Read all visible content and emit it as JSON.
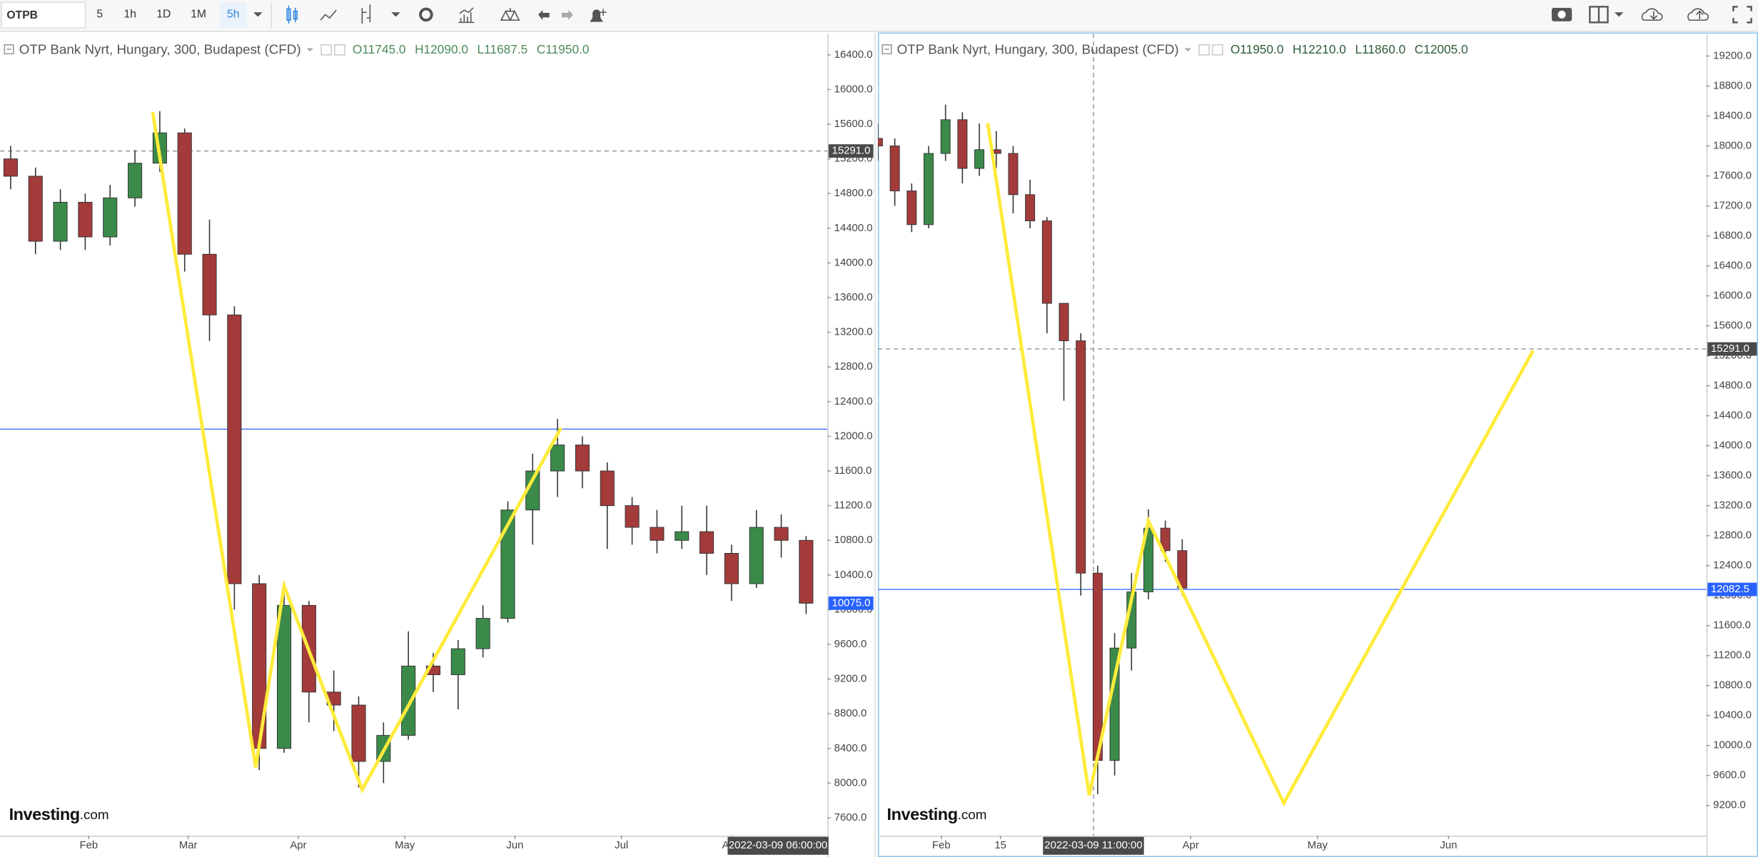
{
  "toolbar": {
    "symbol": "OTPB",
    "intervals": [
      "5",
      "1h",
      "1D",
      "1M",
      "5h"
    ],
    "active_interval": "5h"
  },
  "chart_data": [
    {
      "type": "candlestick",
      "title": "OTP Bank Nyrt, Hungary, 300, Budapest (CFD)",
      "readout": [
        "O11745.0",
        "H12090.0",
        "L11687.5",
        "C11950.0"
      ],
      "logo": [
        "Investing",
        ".com"
      ],
      "up_color": "#3b8a4a",
      "down_color": "#a33b3b",
      "xlim": [
        "2022-01-07",
        "2022-08-28"
      ],
      "ylim": [
        7393,
        16645
      ],
      "xticks": [
        {
          "value": "2022-02-01",
          "label": "Feb"
        },
        {
          "value": "2022-03-01",
          "label": "Mar"
        },
        {
          "value": "2022-04-01",
          "label": "Apr"
        },
        {
          "value": "2022-05-01",
          "label": "May"
        },
        {
          "value": "2022-06-01",
          "label": "Jun"
        },
        {
          "value": "2022-07-01",
          "label": "Jul"
        },
        {
          "value": "2022-08-01",
          "label": "Aug"
        }
      ],
      "yticks": [
        {
          "value": 7600,
          "label": "7600.0"
        },
        {
          "value": 8000,
          "label": "8000.0"
        },
        {
          "value": 8400,
          "label": "8400.0"
        },
        {
          "value": 8800,
          "label": "8800.0"
        },
        {
          "value": 9200,
          "label": "9200.0"
        },
        {
          "value": 9600,
          "label": "9600.0"
        },
        {
          "value": 10000,
          "label": "10000.0"
        },
        {
          "value": 10400,
          "label": "10400.0"
        },
        {
          "value": 10800,
          "label": "10800.0"
        },
        {
          "value": 11200,
          "label": "11200.0"
        },
        {
          "value": 11600,
          "label": "11600.0"
        },
        {
          "value": 12000,
          "label": "12000.0"
        },
        {
          "value": 12400,
          "label": "12400.0"
        },
        {
          "value": 12800,
          "label": "12800.0"
        },
        {
          "value": 13200,
          "label": "13200.0"
        },
        {
          "value": 13600,
          "label": "13600.0"
        },
        {
          "value": 14000,
          "label": "14000.0"
        },
        {
          "value": 14400,
          "label": "14400.0"
        },
        {
          "value": 14800,
          "label": "14800.0"
        },
        {
          "value": 15200,
          "label": "15200.0"
        },
        {
          "value": 15600,
          "label": "15600.0"
        },
        {
          "value": 16000,
          "label": "16000.0"
        },
        {
          "value": 16400,
          "label": "16400.0"
        }
      ],
      "candles": {
        "x": [
          "2022-01-10",
          "2022-01-17",
          "2022-01-24",
          "2022-01-31",
          "2022-02-07",
          "2022-02-14",
          "2022-02-21",
          "2022-02-28",
          "2022-03-07",
          "2022-03-14",
          "2022-03-21",
          "2022-03-28",
          "2022-04-04",
          "2022-04-11",
          "2022-04-18",
          "2022-04-25",
          "2022-05-02",
          "2022-05-09",
          "2022-05-16",
          "2022-05-23",
          "2022-05-30",
          "2022-06-06",
          "2022-06-13",
          "2022-06-20",
          "2022-06-27",
          "2022-07-04",
          "2022-07-11",
          "2022-07-18",
          "2022-07-25",
          "2022-08-01",
          "2022-08-08",
          "2022-08-15",
          "2022-08-22"
        ],
        "open": [
          15200,
          15000,
          14250,
          14700,
          14300,
          14750,
          15150,
          15500,
          14100,
          13400,
          10300,
          8400,
          10050,
          9050,
          8900,
          8250,
          8550,
          9350,
          9250,
          9550,
          9900,
          11150,
          11600,
          11900,
          11600,
          11200,
          10950,
          10800,
          10900,
          10650,
          10300,
          10950,
          10800
        ],
        "high": [
          15350,
          15100,
          14850,
          14800,
          14900,
          15300,
          15750,
          15550,
          14500,
          13500,
          10400,
          10250,
          10100,
          9300,
          9000,
          8700,
          9750,
          9500,
          9650,
          10050,
          11250,
          11800,
          12200,
          12000,
          11700,
          11300,
          11150,
          11200,
          11200,
          10750,
          11150,
          11100,
          10850
        ],
        "low": [
          14850,
          14100,
          14150,
          14150,
          14200,
          14650,
          15050,
          13900,
          13100,
          10000,
          8150,
          8350,
          8700,
          8600,
          7950,
          8000,
          8500,
          9050,
          8850,
          9450,
          9850,
          10750,
          11300,
          11400,
          10700,
          10750,
          10650,
          10700,
          10400,
          10100,
          10250,
          10600,
          9950
        ],
        "close": [
          15000,
          14250,
          14700,
          14300,
          14750,
          15150,
          15500,
          14100,
          13400,
          10300,
          8400,
          10050,
          9050,
          8900,
          8250,
          8550,
          9350,
          9250,
          9550,
          9900,
          11150,
          11600,
          11900,
          11600,
          11200,
          10950,
          10800,
          10900,
          10650,
          10300,
          10950,
          10800,
          10075
        ]
      },
      "overlay_line": {
        "color": "#ffeb3b",
        "x": [
          "2022-02-19",
          "2022-03-20",
          "2022-03-28",
          "2022-04-19",
          "2022-06-14"
        ],
        "values": [
          15741,
          8180,
          10274,
          7924,
          12098
        ]
      },
      "price_lines": [
        {
          "value": 15291,
          "label": "15291.0",
          "color": "#888888",
          "label_color": "#4a4a4a",
          "dashed": true
        },
        {
          "value": 12082.5,
          "color": "#2962ff",
          "dashed": false
        }
      ],
      "last_price": {
        "value": 10075,
        "label": "10075.0",
        "color": "#2962ff"
      },
      "crosshair_time_label": "2022-03-09 06:00:00"
    },
    {
      "type": "candlestick",
      "title": "OTP Bank Nyrt, Hungary, 300, Budapest (CFD)",
      "readout": [
        "O11950.0",
        "H12210.0",
        "L11860.0",
        "C12005.0"
      ],
      "logo": [
        "Investing",
        ".com"
      ],
      "up_color": "#3b8a4a",
      "down_color": "#a33b3b",
      "xlim": [
        "2022-01-17",
        "2022-08-01"
      ],
      "ylim": [
        8796,
        19499
      ],
      "xticks": [
        {
          "value": "2022-02-01",
          "label": "Feb"
        },
        {
          "value": "2022-02-15",
          "label": "15"
        },
        {
          "value": "2022-04-01",
          "label": "Apr"
        },
        {
          "value": "2022-05-01",
          "label": "May"
        },
        {
          "value": "2022-06-01",
          "label": "Jun"
        }
      ],
      "yticks": [
        {
          "value": 9200,
          "label": "9200.0"
        },
        {
          "value": 9600,
          "label": "9600.0"
        },
        {
          "value": 10000,
          "label": "10000.0"
        },
        {
          "value": 10400,
          "label": "10400.0"
        },
        {
          "value": 10800,
          "label": "10800.0"
        },
        {
          "value": 11200,
          "label": "11200.0"
        },
        {
          "value": 11600,
          "label": "11600.0"
        },
        {
          "value": 12000,
          "label": "12000.0"
        },
        {
          "value": 12400,
          "label": "12400.0"
        },
        {
          "value": 12800,
          "label": "12800.0"
        },
        {
          "value": 13200,
          "label": "13200.0"
        },
        {
          "value": 13600,
          "label": "13600.0"
        },
        {
          "value": 14000,
          "label": "14000.0"
        },
        {
          "value": 14400,
          "label": "14400.0"
        },
        {
          "value": 14800,
          "label": "14800.0"
        },
        {
          "value": 15200,
          "label": "15200.0"
        },
        {
          "value": 15600,
          "label": "15600.0"
        },
        {
          "value": 16000,
          "label": "16000.0"
        },
        {
          "value": 16400,
          "label": "16400.0"
        },
        {
          "value": 16800,
          "label": "16800.0"
        },
        {
          "value": 17200,
          "label": "17200.0"
        },
        {
          "value": 17600,
          "label": "17600.0"
        },
        {
          "value": 18000,
          "label": "18000.0"
        },
        {
          "value": 18400,
          "label": "18400.0"
        },
        {
          "value": 18800,
          "label": "18800.0"
        },
        {
          "value": 19200,
          "label": "19200.0"
        }
      ],
      "candles": {
        "x": [
          "2022-01-17",
          "2022-01-21",
          "2022-01-25",
          "2022-01-29",
          "2022-02-02",
          "2022-02-06",
          "2022-02-10",
          "2022-02-14",
          "2022-02-18",
          "2022-02-22",
          "2022-02-26",
          "2022-03-02",
          "2022-03-06",
          "2022-03-10",
          "2022-03-14",
          "2022-03-18",
          "2022-03-22",
          "2022-03-26",
          "2022-03-30"
        ],
        "open": [
          18100,
          18000,
          17400,
          16950,
          17900,
          18350,
          17700,
          17950,
          17900,
          17350,
          17000,
          15900,
          15400,
          12300,
          9800,
          11300,
          12050,
          12900,
          12600
        ],
        "high": [
          18300,
          18100,
          17500,
          18000,
          18550,
          18450,
          18300,
          18200,
          18000,
          17550,
          17050,
          15650,
          15500,
          12400,
          11500,
          12300,
          13150,
          13000,
          12750
        ],
        "low": [
          17800,
          17200,
          16850,
          16900,
          17800,
          17500,
          17600,
          17700,
          17100,
          16900,
          15500,
          14600,
          12000,
          9350,
          9600,
          11000,
          11950,
          12450,
          12000
        ],
        "close": [
          18000,
          17400,
          16950,
          17900,
          18350,
          17700,
          17950,
          17900,
          17350,
          17000,
          15900,
          15400,
          12300,
          9800,
          11300,
          12050,
          12900,
          12600,
          12100
        ]
      },
      "overlay_line": {
        "color": "#ffeb3b",
        "x": [
          "2022-02-12",
          "2022-03-08",
          "2022-03-22",
          "2022-04-23",
          "2022-06-21"
        ],
        "values": [
          18303,
          9335,
          12996,
          9229,
          15268
        ]
      },
      "price_lines": [
        {
          "value": 15291,
          "label": "15291.0",
          "color": "#888888",
          "label_color": "#4a4a4a",
          "dashed": true
        },
        {
          "value": 12082.5,
          "label": "12082.5",
          "color": "#2962ff",
          "label_color": "#2962ff",
          "dashed": false
        }
      ],
      "crosshair_x": "2022-03-09",
      "crosshair_time_label": "2022-03-09 11:00:00"
    }
  ]
}
